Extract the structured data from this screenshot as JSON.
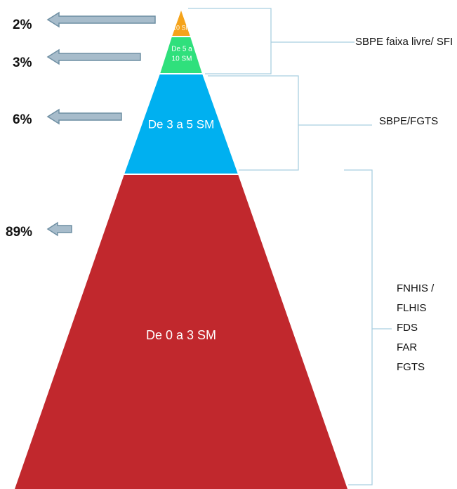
{
  "tiers": [
    {
      "label": "10 SM",
      "share": "2%"
    },
    {
      "label": [
        "De 5 a",
        "10 SM"
      ],
      "share": "3%"
    },
    {
      "label": "De 3 a 5 SM",
      "share": "6%"
    },
    {
      "label": "De 0 a 3 SM",
      "share": "89%"
    }
  ],
  "funding": [
    {
      "lines": [
        "SBPE faixa livre/ SFI"
      ]
    },
    {
      "lines": [
        "SBPE/FGTS"
      ]
    },
    {
      "lines": [
        "FNHIS /",
        "FLHIS",
        "FDS",
        "FAR",
        "FGTS"
      ]
    }
  ]
}
